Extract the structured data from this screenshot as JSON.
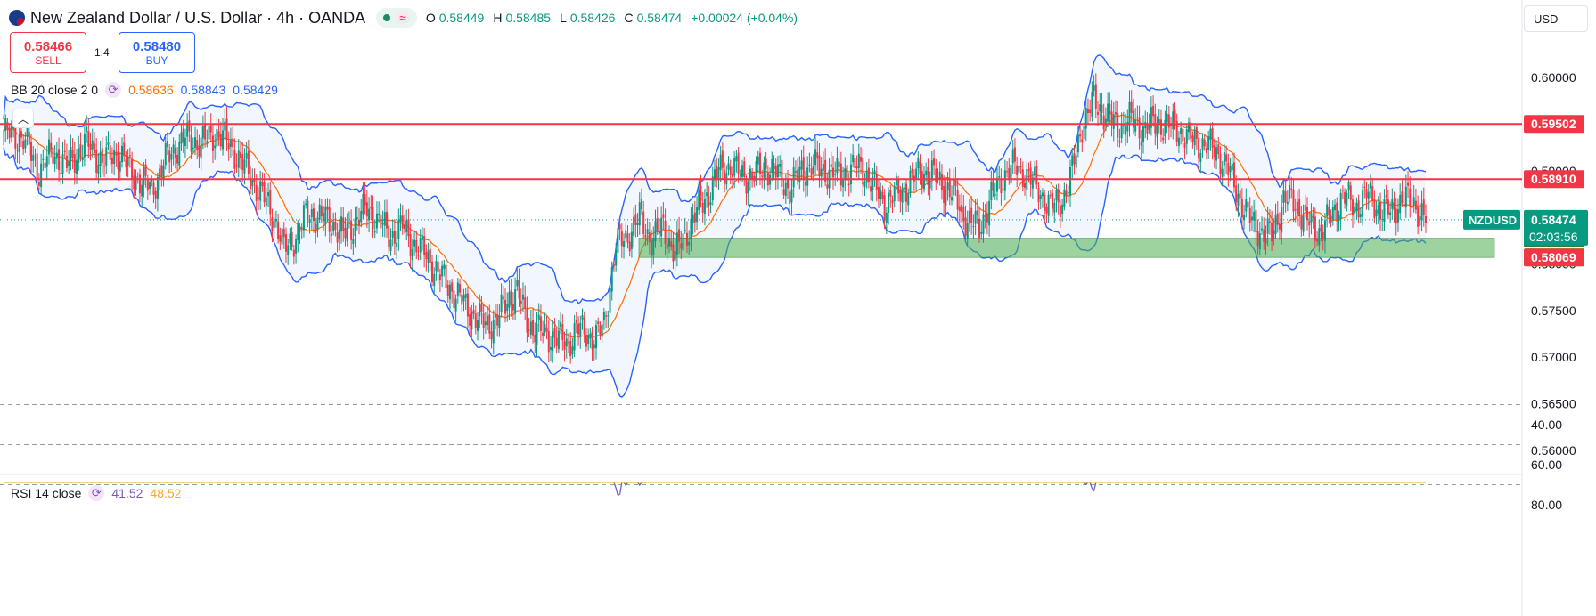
{
  "header": {
    "title": "New Zealand Dollar / U.S. Dollar · 4h · OANDA",
    "market_status_icon": "market-open-dot",
    "ohlc": [
      {
        "key": "O",
        "value": "0.58449"
      },
      {
        "key": "H",
        "value": "0.58485"
      },
      {
        "key": "L",
        "value": "0.58426"
      },
      {
        "key": "C",
        "value": "0.58474"
      },
      {
        "key": "",
        "value": "+0.00024 (+0.04%)"
      }
    ]
  },
  "trade": {
    "sell_price": "0.58466",
    "sell_label": "SELL",
    "spread": "1.4",
    "buy_price": "0.58480",
    "buy_label": "BUY"
  },
  "currency_select": {
    "value": "USD"
  },
  "indicators": {
    "bb": {
      "name": "BB 20 close 2 0",
      "middle": "0.58636",
      "upper": "0.58843",
      "lower": "0.58429"
    },
    "rsi": {
      "name": "RSI 14 close",
      "rsi": "41.52",
      "ma": "48.52"
    }
  },
  "colors": {
    "up": "#089981",
    "down": "#f23645",
    "bb_band": "#2962ff",
    "bb_basis": "#ff6d00",
    "bb_fill": "#2962ff",
    "resistance": "#f23645",
    "zone": "#4caf50",
    "rsi_line": "#7e57c2",
    "rsi_ma": "#fdd835",
    "rsi_fill": "#ede7f6"
  },
  "chart_data": [
    {
      "type": "candlestick",
      "symbol": "NZDUSD",
      "title": "New Zealand Dollar / U.S. Dollar · 4h · OANDA",
      "ylim": [
        0.5575,
        0.6045
      ],
      "y_ticks": [
        "0.60000",
        "0.59500",
        "0.59000",
        "0.58500",
        "0.58000",
        "0.57500",
        "0.57000",
        "0.56500",
        "0.56000"
      ],
      "last_price": "0.58474",
      "countdown": "02:03:56",
      "symbol_label": "NZDUSD",
      "horizontal_lines": [
        {
          "label": "0.59502",
          "value": 0.59502
        },
        {
          "label": "0.58910",
          "value": 0.5891
        }
      ],
      "zone": {
        "top": 0.58275,
        "bottom": 0.5807,
        "top_label": "0.58275",
        "bottom_label": "0.58070"
      },
      "extra_labels": [
        {
          "label": "0.58069",
          "value": 0.58069
        }
      ],
      "close_path": [
        [
          0,
          0.594
        ],
        [
          10,
          0.5935
        ],
        [
          18,
          0.59
        ],
        [
          25,
          0.592
        ],
        [
          32,
          0.5905
        ],
        [
          42,
          0.593
        ],
        [
          50,
          0.591
        ],
        [
          58,
          0.592
        ],
        [
          66,
          0.5895
        ],
        [
          75,
          0.588
        ],
        [
          83,
          0.5915
        ],
        [
          92,
          0.5935
        ],
        [
          100,
          0.593
        ],
        [
          108,
          0.594
        ],
        [
          114,
          0.593
        ],
        [
          120,
          0.591
        ],
        [
          126,
          0.589
        ],
        [
          132,
          0.587
        ],
        [
          138,
          0.5845
        ],
        [
          142,
          0.5815
        ],
        [
          148,
          0.583
        ],
        [
          154,
          0.5855
        ],
        [
          160,
          0.585
        ],
        [
          166,
          0.5845
        ],
        [
          172,
          0.583
        ],
        [
          178,
          0.5845
        ],
        [
          184,
          0.586
        ],
        [
          190,
          0.5845
        ],
        [
          196,
          0.583
        ],
        [
          202,
          0.584
        ],
        [
          208,
          0.582
        ],
        [
          214,
          0.581
        ],
        [
          220,
          0.579
        ],
        [
          226,
          0.5775
        ],
        [
          232,
          0.576
        ],
        [
          238,
          0.5745
        ],
        [
          244,
          0.5735
        ],
        [
          250,
          0.574
        ],
        [
          256,
          0.5765
        ],
        [
          260,
          0.577
        ],
        [
          264,
          0.5745
        ],
        [
          268,
          0.573
        ],
        [
          274,
          0.5725
        ],
        [
          280,
          0.572
        ],
        [
          286,
          0.5715
        ],
        [
          290,
          0.573
        ],
        [
          296,
          0.5725
        ],
        [
          300,
          0.572
        ],
        [
          304,
          0.5735
        ],
        [
          310,
          0.582
        ],
        [
          316,
          0.583
        ],
        [
          322,
          0.585
        ],
        [
          328,
          0.5825
        ],
        [
          334,
          0.584
        ],
        [
          340,
          0.581
        ],
        [
          346,
          0.5835
        ],
        [
          352,
          0.586
        ],
        [
          358,
          0.588
        ],
        [
          362,
          0.59
        ],
        [
          368,
          0.5905
        ],
        [
          374,
          0.5895
        ],
        [
          380,
          0.5895
        ],
        [
          386,
          0.5905
        ],
        [
          392,
          0.5895
        ],
        [
          398,
          0.588
        ],
        [
          404,
          0.59
        ],
        [
          410,
          0.5905
        ],
        [
          416,
          0.59
        ],
        [
          422,
          0.5895
        ],
        [
          428,
          0.59
        ],
        [
          434,
          0.5905
        ],
        [
          440,
          0.5885
        ],
        [
          446,
          0.5865
        ],
        [
          452,
          0.5875
        ],
        [
          458,
          0.5885
        ],
        [
          464,
          0.59
        ],
        [
          470,
          0.5895
        ],
        [
          476,
          0.5885
        ],
        [
          482,
          0.587
        ],
        [
          488,
          0.5845
        ],
        [
          494,
          0.584
        ],
        [
          500,
          0.587
        ],
        [
          506,
          0.5895
        ],
        [
          512,
          0.5905
        ],
        [
          518,
          0.5895
        ],
        [
          524,
          0.588
        ],
        [
          530,
          0.586
        ],
        [
          536,
          0.587
        ],
        [
          540,
          0.589
        ],
        [
          546,
          0.595
        ],
        [
          552,
          0.5975
        ],
        [
          558,
          0.596
        ],
        [
          564,
          0.5945
        ],
        [
          570,
          0.5955
        ],
        [
          576,
          0.5945
        ],
        [
          582,
          0.595
        ],
        [
          588,
          0.595
        ],
        [
          594,
          0.5945
        ],
        [
          600,
          0.5935
        ],
        [
          606,
          0.593
        ],
        [
          612,
          0.5925
        ],
        [
          618,
          0.591
        ],
        [
          624,
          0.588
        ],
        [
          630,
          0.585
        ],
        [
          636,
          0.5835
        ],
        [
          642,
          0.583
        ],
        [
          648,
          0.587
        ],
        [
          654,
          0.5865
        ],
        [
          660,
          0.5845
        ],
        [
          666,
          0.5835
        ],
        [
          672,
          0.585
        ],
        [
          678,
          0.5875
        ],
        [
          684,
          0.586
        ],
        [
          690,
          0.5875
        ],
        [
          696,
          0.586
        ],
        [
          702,
          0.5855
        ],
        [
          708,
          0.587
        ],
        [
          714,
          0.5865
        ],
        [
          720,
          0.5848
        ]
      ],
      "rsi_ticks": [
        "80.00",
        "60.00",
        "40.00"
      ]
    }
  ]
}
